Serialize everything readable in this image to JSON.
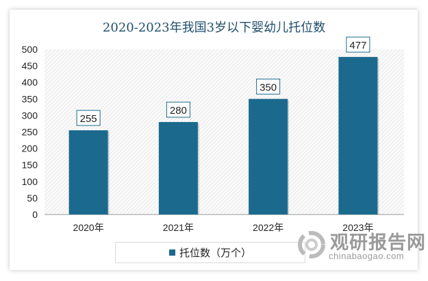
{
  "chart_data": {
    "type": "bar",
    "title": "2020-2023年我国3岁以下婴幼儿托位数",
    "categories": [
      "2020年",
      "2021年",
      "2022年",
      "2023年"
    ],
    "series": [
      {
        "name": "托位数（万个）",
        "values": [
          255,
          280,
          350,
          477
        ]
      }
    ],
    "ylim": [
      0,
      500
    ],
    "yticks": [
      0,
      50,
      100,
      150,
      200,
      250,
      300,
      350,
      400,
      450,
      500
    ],
    "xlabel": "",
    "ylabel": "",
    "grid": false,
    "legend": "bottom",
    "bar_color": "#1b6a8e"
  },
  "watermark": {
    "name": "观研报告网",
    "url": "chinabaogao.com"
  }
}
